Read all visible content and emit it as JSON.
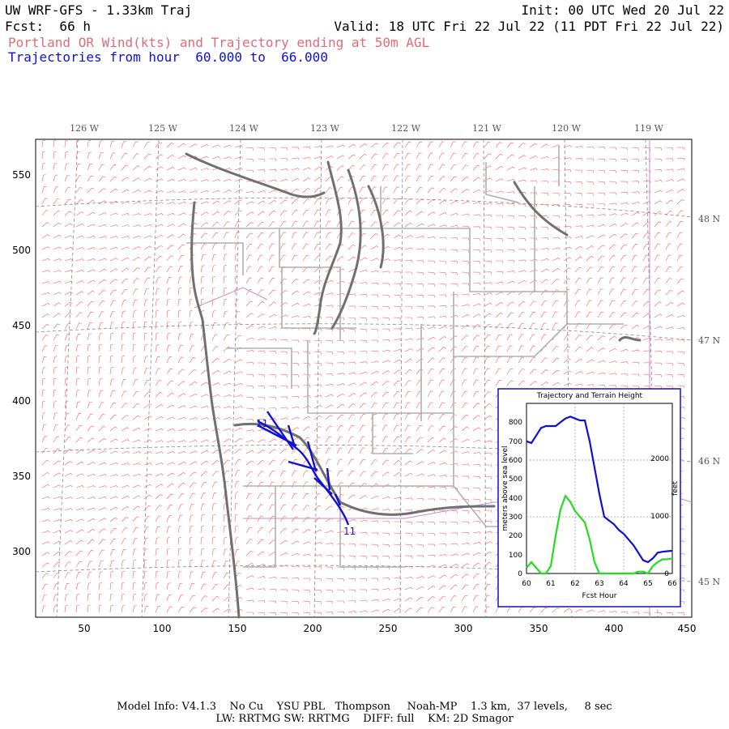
{
  "header": {
    "model": "UW WRF-GFS - 1.33km Traj",
    "init": "Init: 00 UTC Wed 20 Jul 22",
    "fcst": "Fcst:  66 h",
    "valid": "Valid: 18 UTC Fri 22 Jul 22 (11 PDT Fri 22 Jul 22)",
    "field": "Portland OR Wind(kts) and Trajectory ending at 50m AGL",
    "traj_hours": "Trajectories from hour  60.000 to  66.000"
  },
  "axes": {
    "x_ticks": [
      "50",
      "100",
      "150",
      "200",
      "250",
      "300",
      "350",
      "400",
      "450"
    ],
    "y_ticks": [
      "550",
      "500",
      "450",
      "400",
      "350",
      "300"
    ],
    "lon_labels": [
      "126 W",
      "125 W",
      "124 W",
      "123 W",
      "122 W",
      "121 W",
      "120 W",
      "119 W"
    ],
    "lat_labels": [
      "48 N",
      "47 N",
      "46 N",
      "45 N"
    ]
  },
  "map_labels": {
    "traj_start": "11",
    "traj_end": "11"
  },
  "colors": {
    "barbs": "#ff5a5a",
    "coast": "#707070",
    "borders": "#b0b0b0",
    "trajectory": "#1010d0",
    "terrain": "#22dd22"
  },
  "inset": {
    "title": "Trajectory and Terrain Height",
    "ylabel_left": "meters above sea level",
    "ylabel_right": "feet",
    "xlabel": "Fcst Hour",
    "x_ticks": [
      "60",
      "61",
      "62",
      "63",
      "64",
      "65",
      "66"
    ],
    "y_ticks": [
      "0",
      "100",
      "200",
      "300",
      "400",
      "500",
      "600",
      "700",
      "800"
    ],
    "y2_ticks": [
      "0",
      "1000",
      "2000"
    ]
  },
  "chart_data": {
    "type": "line",
    "title": "Trajectory and Terrain Height",
    "xlabel": "Fcst Hour",
    "ylabel": "meters above sea level",
    "xlim": [
      60,
      66
    ],
    "ylim": [
      0,
      900
    ],
    "series": [
      {
        "x": [
          60,
          60.2,
          60.4,
          60.6,
          60.8,
          61,
          61.2,
          61.4,
          61.6,
          61.8,
          62,
          62.2,
          62.4,
          62.6,
          62.8,
          63,
          63.2,
          63.4,
          63.6,
          63.8,
          64,
          64.2,
          64.4,
          64.6,
          64.8,
          65,
          65.2,
          65.4,
          65.6,
          65.8,
          66
        ],
        "values": [
          700,
          690,
          730,
          770,
          780,
          780,
          780,
          800,
          820,
          830,
          820,
          810,
          810,
          700,
          560,
          420,
          300,
          280,
          260,
          230,
          210,
          180,
          150,
          110,
          70,
          60,
          80,
          110,
          115,
          118,
          120
        ]
      },
      {
        "x": [
          60,
          60.2,
          60.4,
          60.6,
          60.8,
          61,
          61.2,
          61.4,
          61.6,
          61.8,
          62,
          62.2,
          62.4,
          62.6,
          62.8,
          63,
          63.2,
          63.4,
          63.6,
          63.8,
          64,
          64.2,
          64.4,
          64.6,
          64.8,
          65,
          65.2,
          65.4,
          65.6,
          65.8,
          66
        ],
        "values": [
          30,
          60,
          30,
          0,
          0,
          40,
          200,
          340,
          410,
          380,
          330,
          300,
          270,
          180,
          60,
          0,
          0,
          0,
          0,
          0,
          0,
          0,
          0,
          10,
          10,
          0,
          40,
          60,
          75,
          75,
          80
        ]
      }
    ]
  },
  "footer": {
    "line1": "Model Info: V4.1.3    No Cu    YSU PBL   Thompson     Noah-MP    1.3 km,  37 levels,     8 sec",
    "line2": "LW: RRTMG SW: RRTMG    DIFF: full    KM: 2D Smagor"
  }
}
